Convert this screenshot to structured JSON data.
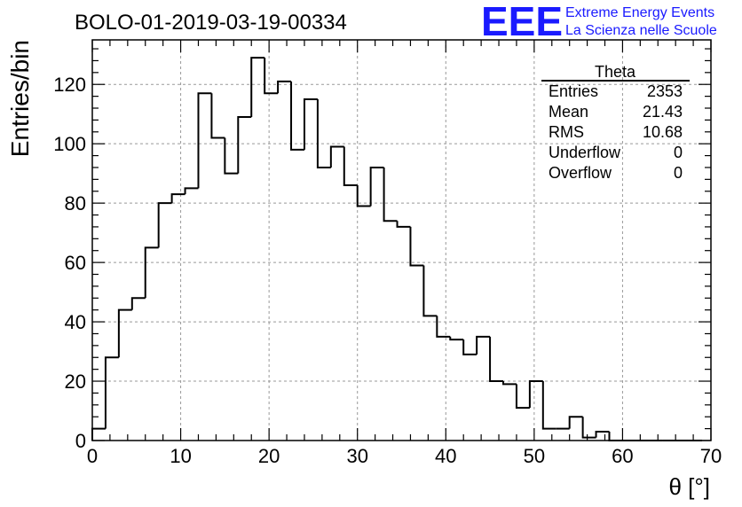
{
  "chart_data": {
    "type": "bar",
    "title": "BOLO-01-2019-03-19-00334",
    "xlabel": "θ [°]",
    "ylabel": "Entries/bin",
    "xlim": [
      0,
      70
    ],
    "ylim": [
      0,
      135
    ],
    "bin_width": 1.5,
    "x_ticks": [
      0,
      10,
      20,
      30,
      40,
      50,
      60,
      70
    ],
    "y_ticks": [
      0,
      20,
      40,
      60,
      80,
      100,
      120
    ],
    "grid": true,
    "values": [
      4,
      28,
      44,
      48,
      65,
      80,
      83,
      85,
      117,
      102,
      90,
      109,
      129,
      117,
      121,
      98,
      115,
      92,
      99,
      86,
      79,
      92,
      74,
      72,
      59,
      42,
      35,
      34,
      29,
      35,
      20,
      19,
      11,
      20,
      4,
      4,
      8,
      1,
      3,
      0,
      0,
      0,
      0,
      0,
      0,
      0
    ],
    "color": "#000000"
  },
  "stats": {
    "title": "Theta",
    "rows": [
      {
        "label": "Entries",
        "value": "2353"
      },
      {
        "label": "Mean",
        "value": "21.43"
      },
      {
        "label": "RMS",
        "value": "10.68"
      },
      {
        "label": "Underflow",
        "value": "0"
      },
      {
        "label": "Overflow",
        "value": "0"
      }
    ]
  },
  "logo": {
    "text": "EEE",
    "line1": "Extreme Energy Events",
    "line2": "La Scienza nelle Scuole",
    "color": "#1a1aff"
  }
}
